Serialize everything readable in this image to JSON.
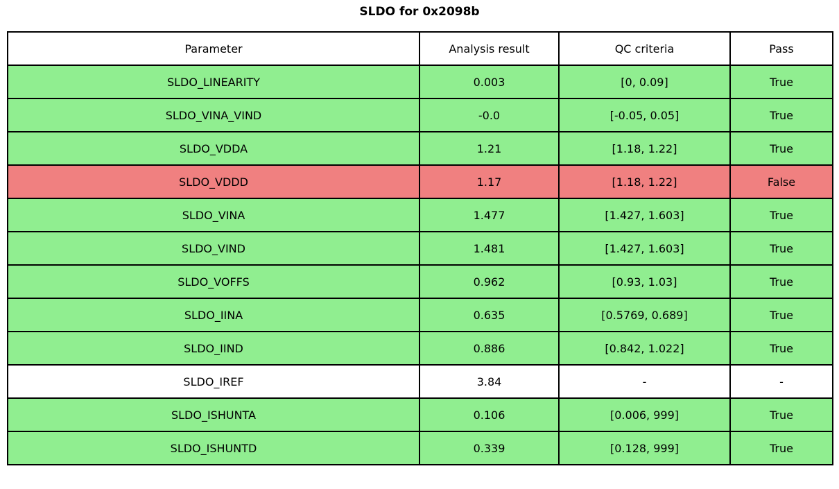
{
  "title": "SLDO for 0x2098b",
  "colors": {
    "pass_row": "#90ee90",
    "fail_row": "#f08080",
    "neutral_row": "#ffffff",
    "border": "#000000"
  },
  "table": {
    "columns": [
      "Parameter",
      "Analysis result",
      "QC criteria",
      "Pass"
    ],
    "rows": [
      {
        "param": "SLDO_LINEARITY",
        "result": "0.003",
        "criteria": "[0, 0.09]",
        "pass": "True",
        "status": "pass"
      },
      {
        "param": "SLDO_VINA_VIND",
        "result": "-0.0",
        "criteria": "[-0.05, 0.05]",
        "pass": "True",
        "status": "pass"
      },
      {
        "param": "SLDO_VDDA",
        "result": "1.21",
        "criteria": "[1.18, 1.22]",
        "pass": "True",
        "status": "pass"
      },
      {
        "param": "SLDO_VDDD",
        "result": "1.17",
        "criteria": "[1.18, 1.22]",
        "pass": "False",
        "status": "fail"
      },
      {
        "param": "SLDO_VINA",
        "result": "1.477",
        "criteria": "[1.427, 1.603]",
        "pass": "True",
        "status": "pass"
      },
      {
        "param": "SLDO_VIND",
        "result": "1.481",
        "criteria": "[1.427, 1.603]",
        "pass": "True",
        "status": "pass"
      },
      {
        "param": "SLDO_VOFFS",
        "result": "0.962",
        "criteria": "[0.93, 1.03]",
        "pass": "True",
        "status": "pass"
      },
      {
        "param": "SLDO_IINA",
        "result": "0.635",
        "criteria": "[0.5769, 0.689]",
        "pass": "True",
        "status": "pass"
      },
      {
        "param": "SLDO_IIND",
        "result": "0.886",
        "criteria": "[0.842, 1.022]",
        "pass": "True",
        "status": "pass"
      },
      {
        "param": "SLDO_IREF",
        "result": "3.84",
        "criteria": "-",
        "pass": "-",
        "status": "none"
      },
      {
        "param": "SLDO_ISHUNTA",
        "result": "0.106",
        "criteria": "[0.006, 999]",
        "pass": "True",
        "status": "pass"
      },
      {
        "param": "SLDO_ISHUNTD",
        "result": "0.339",
        "criteria": "[0.128, 999]",
        "pass": "True",
        "status": "pass"
      }
    ]
  },
  "chart_data": {
    "type": "table",
    "title": "SLDO for 0x2098b",
    "columns": [
      "Parameter",
      "Analysis result",
      "QC criteria",
      "Pass"
    ],
    "rows": [
      [
        "SLDO_LINEARITY",
        0.003,
        "[0, 0.09]",
        true
      ],
      [
        "SLDO_VINA_VIND",
        -0.0,
        "[-0.05, 0.05]",
        true
      ],
      [
        "SLDO_VDDA",
        1.21,
        "[1.18, 1.22]",
        true
      ],
      [
        "SLDO_VDDD",
        1.17,
        "[1.18, 1.22]",
        false
      ],
      [
        "SLDO_VINA",
        1.477,
        "[1.427, 1.603]",
        true
      ],
      [
        "SLDO_VIND",
        1.481,
        "[1.427, 1.603]",
        true
      ],
      [
        "SLDO_VOFFS",
        0.962,
        "[0.93, 1.03]",
        true
      ],
      [
        "SLDO_IINA",
        0.635,
        "[0.5769, 0.689]",
        true
      ],
      [
        "SLDO_IIND",
        0.886,
        "[0.842, 1.022]",
        true
      ],
      [
        "SLDO_IREF",
        3.84,
        null,
        null
      ],
      [
        "SLDO_ISHUNTA",
        0.106,
        "[0.006, 999]",
        true
      ],
      [
        "SLDO_ISHUNTD",
        0.339,
        "[0.128, 999]",
        true
      ]
    ],
    "layout": {
      "row_color_pass": "#90ee90",
      "row_color_fail": "#f08080",
      "row_color_none": "#ffffff"
    }
  }
}
